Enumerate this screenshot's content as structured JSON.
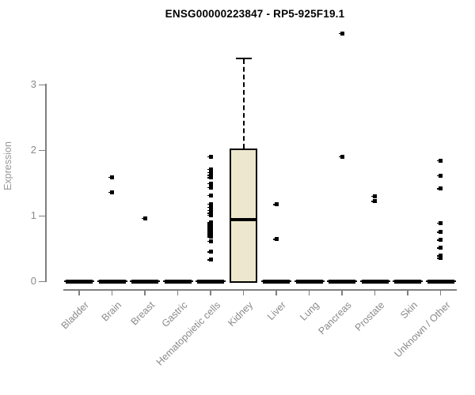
{
  "chart_data": {
    "type": "boxplot",
    "title": "ENSG00000223847 - RP5-925F19.1",
    "xlabel": "",
    "ylabel": "Expression",
    "yticks": [
      0,
      1,
      2,
      3
    ],
    "ylim": [
      0,
      3.85
    ],
    "grid": false,
    "legend": "none",
    "categories": [
      "Bladder",
      "Brain",
      "Breast",
      "Gastric",
      "Hematopoietic cells",
      "Kidney",
      "Liver",
      "Lung",
      "Pancreas",
      "Prostate",
      "Skin",
      "Unknown / Other"
    ],
    "boxes": [
      {
        "category": "Bladder",
        "q1": 0,
        "median": 0,
        "q3": 0,
        "whisker_low": 0,
        "whisker_high": 0
      },
      {
        "category": "Brain",
        "q1": 0,
        "median": 0,
        "q3": 0,
        "whisker_low": 0,
        "whisker_high": 0
      },
      {
        "category": "Breast",
        "q1": 0,
        "median": 0,
        "q3": 0,
        "whisker_low": 0,
        "whisker_high": 0
      },
      {
        "category": "Gastric",
        "q1": 0,
        "median": 0,
        "q3": 0,
        "whisker_low": 0,
        "whisker_high": 0
      },
      {
        "category": "Hematopoietic cells",
        "q1": 0,
        "median": 0,
        "q3": 0,
        "whisker_low": 0,
        "whisker_high": 0
      },
      {
        "category": "Kidney",
        "q1": 0,
        "median": 0.94,
        "q3": 2.03,
        "whisker_low": 0,
        "whisker_high": 3.41
      },
      {
        "category": "Liver",
        "q1": 0,
        "median": 0,
        "q3": 0,
        "whisker_low": 0,
        "whisker_high": 0
      },
      {
        "category": "Lung",
        "q1": 0,
        "median": 0,
        "q3": 0,
        "whisker_low": 0,
        "whisker_high": 0
      },
      {
        "category": "Pancreas",
        "q1": 0,
        "median": 0,
        "q3": 0,
        "whisker_low": 0,
        "whisker_high": 0
      },
      {
        "category": "Prostate",
        "q1": 0,
        "median": 0,
        "q3": 0,
        "whisker_low": 0,
        "whisker_high": 0
      },
      {
        "category": "Skin",
        "q1": 0,
        "median": 0,
        "q3": 0,
        "whisker_low": 0,
        "whisker_high": 0
      },
      {
        "category": "Unknown / Other",
        "q1": 0,
        "median": 0,
        "q3": 0,
        "whisker_low": 0,
        "whisker_high": 0
      }
    ],
    "outlier_points": [
      {
        "category": "Brain",
        "values": [
          1.59,
          1.36
        ]
      },
      {
        "category": "Breast",
        "values": [
          0.96
        ]
      },
      {
        "category": "Hematopoietic cells",
        "values": [
          1.9,
          1.71,
          1.66,
          1.62,
          1.58,
          1.49,
          1.43,
          1.31,
          1.18,
          1.13,
          1.08,
          1.04,
          1.01,
          0.9,
          0.885,
          0.87,
          0.855,
          0.84,
          0.825,
          0.81,
          0.795,
          0.78,
          0.765,
          0.75,
          0.735,
          0.72,
          0.705,
          0.69,
          0.675,
          0.61,
          0.45,
          0.33
        ]
      },
      {
        "category": "Liver",
        "values": [
          1.17,
          0.64
        ]
      },
      {
        "category": "Pancreas",
        "values": [
          3.78,
          1.9
        ]
      },
      {
        "category": "Prostate",
        "values": [
          1.3,
          1.22
        ]
      },
      {
        "category": "Unknown / Other",
        "values": [
          1.84,
          1.61,
          1.41,
          0.89,
          0.75,
          0.63,
          0.51,
          0.39,
          0.35
        ]
      }
    ],
    "colors": {
      "box_fill": "#EDE8CD",
      "box_border": "#000000",
      "median": "#000000",
      "point": "#000000",
      "zero_bar": "#000000",
      "axis": "#7f7f7f",
      "tick_label": "#8a8a8a",
      "title": "#000000",
      "background": "#ffffff"
    }
  }
}
